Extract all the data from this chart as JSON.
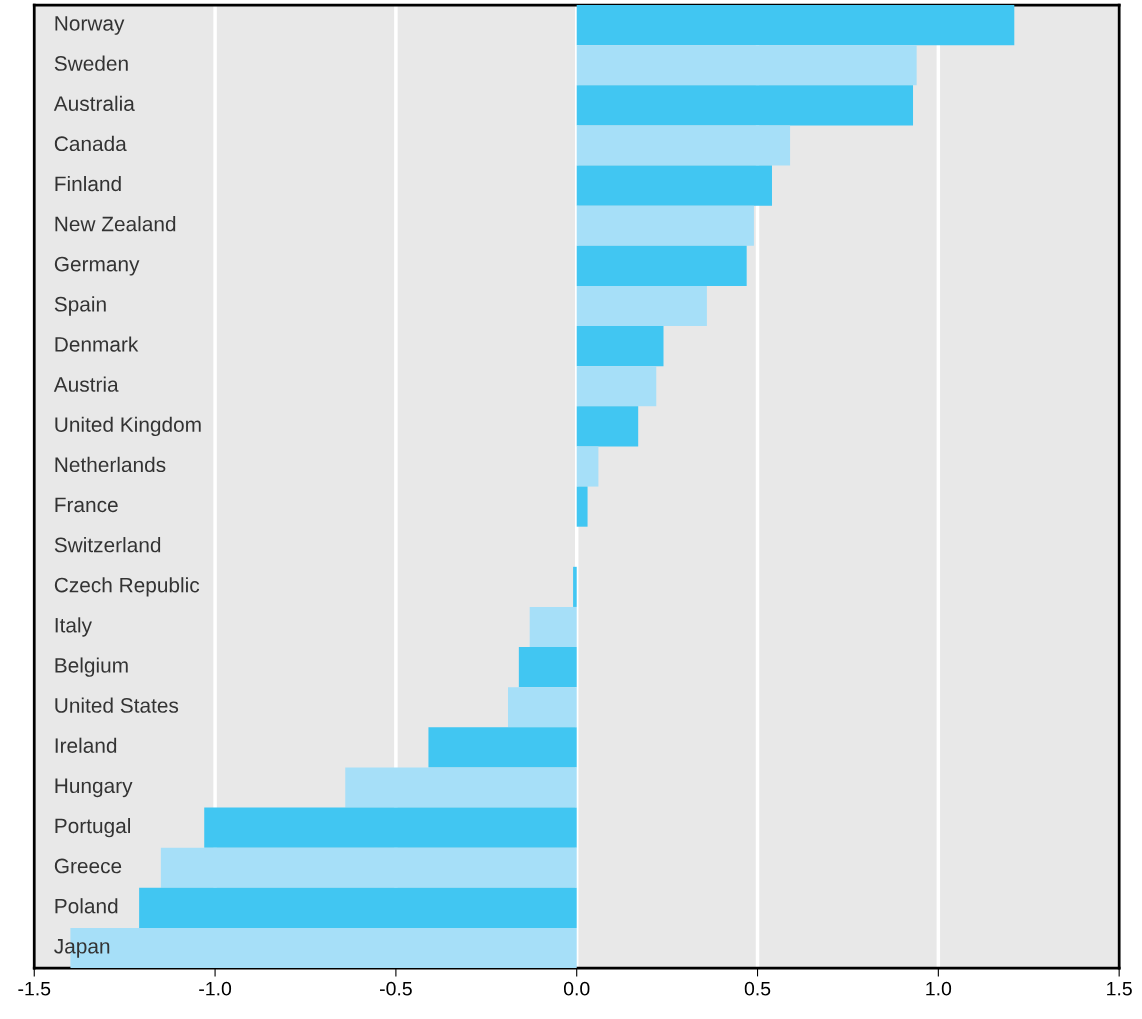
{
  "chart_data": {
    "type": "bar",
    "orientation": "horizontal",
    "categories": [
      "Norway",
      "Sweden",
      "Australia",
      "Canada",
      "Finland",
      "New Zealand",
      "Germany",
      "Spain",
      "Denmark",
      "Austria",
      "United Kingdom",
      "Netherlands",
      "France",
      "Switzerland",
      "Czech Republic",
      "Italy",
      "Belgium",
      "United States",
      "Ireland",
      "Hungary",
      "Portugal",
      "Greece",
      "Poland",
      "Japan"
    ],
    "values": [
      1.21,
      0.94,
      0.93,
      0.59,
      0.54,
      0.49,
      0.47,
      0.36,
      0.24,
      0.22,
      0.17,
      0.06,
      0.03,
      0.0,
      -0.01,
      -0.13,
      -0.16,
      -0.19,
      -0.41,
      -0.64,
      -1.03,
      -1.15,
      -1.21,
      -1.4
    ],
    "colors": [
      "#41c6f2",
      "#a6dff8",
      "#41c6f2",
      "#a6dff8",
      "#41c6f2",
      "#a6dff8",
      "#41c6f2",
      "#a6dff8",
      "#41c6f2",
      "#a6dff8",
      "#41c6f2",
      "#a6dff8",
      "#41c6f2",
      "#a6dff8",
      "#41c6f2",
      "#a6dff8",
      "#41c6f2",
      "#a6dff8",
      "#41c6f2",
      "#a6dff8",
      "#41c6f2",
      "#a6dff8",
      "#41c6f2",
      "#a6dff8"
    ],
    "xlim": [
      -1.5,
      1.5
    ],
    "xticks": [
      {
        "value": -1.5,
        "label": "-1.5"
      },
      {
        "value": -1.0,
        "label": "-1.0"
      },
      {
        "value": -0.5,
        "label": "-0.5"
      },
      {
        "value": 0.0,
        "label": "0.0"
      },
      {
        "value": 0.5,
        "label": "0.5"
      },
      {
        "value": 1.0,
        "label": "1.0"
      },
      {
        "value": 1.5,
        "label": "1.5"
      }
    ],
    "grid": "x",
    "legend": false
  }
}
